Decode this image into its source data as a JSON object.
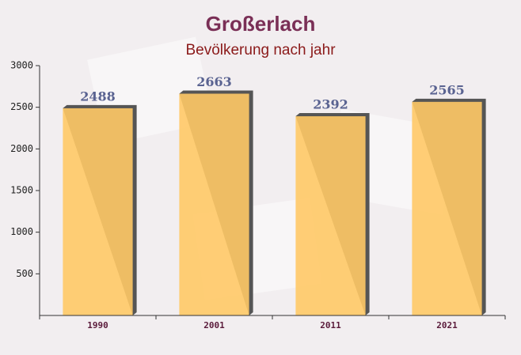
{
  "chart_data": {
    "type": "bar",
    "title": "Großerlach",
    "subtitle": "Bevölkerung nach jahr",
    "categories": [
      "1990",
      "2001",
      "2011",
      "2021"
    ],
    "values": [
      2488,
      2663,
      2392,
      2565
    ],
    "color": "#ffc966",
    "ylim": [
      0,
      3000
    ],
    "yticks": [
      500,
      1000,
      1500,
      2000,
      2500,
      3000
    ],
    "grid": false
  }
}
